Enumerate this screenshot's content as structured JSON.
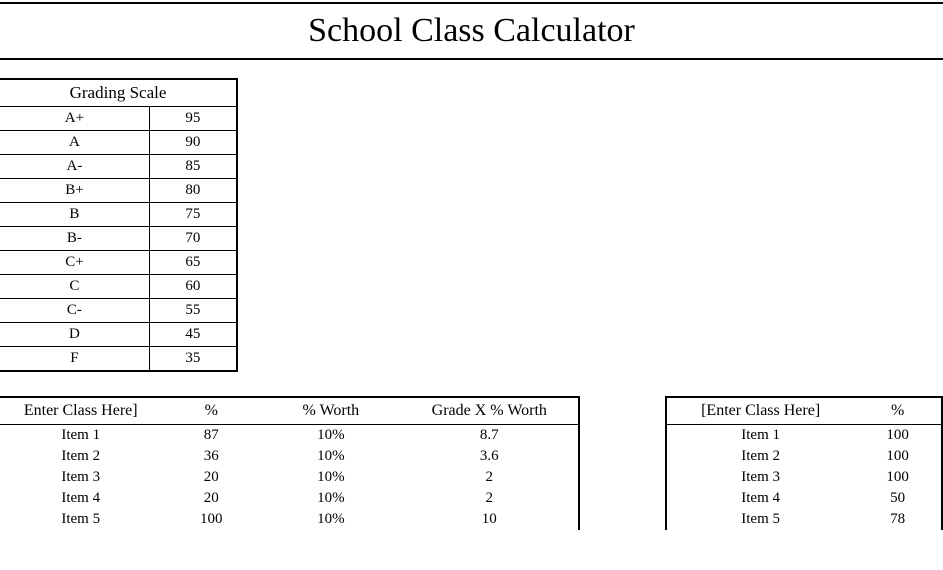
{
  "title": "School Class Calculator",
  "grading_scale": {
    "header": "Grading Scale",
    "rows": [
      {
        "letter": "A+",
        "value": "95"
      },
      {
        "letter": "A",
        "value": "90"
      },
      {
        "letter": "A-",
        "value": "85"
      },
      {
        "letter": "B+",
        "value": "80"
      },
      {
        "letter": "B",
        "value": "75"
      },
      {
        "letter": "B-",
        "value": "70"
      },
      {
        "letter": "C+",
        "value": "65"
      },
      {
        "letter": "C",
        "value": "60"
      },
      {
        "letter": "C-",
        "value": "55"
      },
      {
        "letter": "D",
        "value": "45"
      },
      {
        "letter": "F",
        "value": "35"
      }
    ]
  },
  "class_left": {
    "headers": {
      "name": "Enter Class Here]",
      "pct": "%",
      "worth": "% Worth",
      "gxw": "Grade X % Worth"
    },
    "rows": [
      {
        "name": "Item 1",
        "pct": "87",
        "worth": "10%",
        "gxw": "8.7"
      },
      {
        "name": "Item 2",
        "pct": "36",
        "worth": "10%",
        "gxw": "3.6"
      },
      {
        "name": "Item 3",
        "pct": "20",
        "worth": "10%",
        "gxw": "2"
      },
      {
        "name": "Item 4",
        "pct": "20",
        "worth": "10%",
        "gxw": "2"
      },
      {
        "name": "Item 5",
        "pct": "100",
        "worth": "10%",
        "gxw": "10"
      }
    ]
  },
  "class_right": {
    "headers": {
      "name": "[Enter Class Here]",
      "pct": "%"
    },
    "rows": [
      {
        "name": "Item 1",
        "pct": "100"
      },
      {
        "name": "Item 2",
        "pct": "100"
      },
      {
        "name": "Item 3",
        "pct": "100"
      },
      {
        "name": "Item 4",
        "pct": "50"
      },
      {
        "name": "Item 5",
        "pct": "78"
      }
    ]
  }
}
